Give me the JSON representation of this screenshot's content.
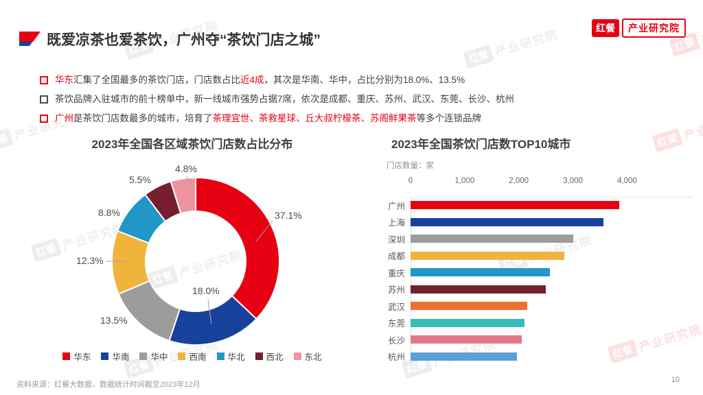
{
  "page": {
    "title": "既爱凉茶也爱茶饮，广州夺“茶饮门店之城”",
    "page_number": "10",
    "source_note": "资料来源：红餐大数据，数据统计时间截至2023年12月"
  },
  "logo": {
    "brand": "红餐",
    "org": "产业研究院"
  },
  "watermark": {
    "brand": "红餐",
    "org": "产业研究院"
  },
  "accent_colors": {
    "red": "#e60012",
    "blue": "#17429b"
  },
  "bullets": [
    {
      "marker": "red",
      "segments": [
        {
          "text": "华东",
          "hl": true
        },
        {
          "text": "汇集了全国最多的茶饮门店，门店数占比",
          "hl": false
        },
        {
          "text": "近4成",
          "hl": true
        },
        {
          "text": "，其次是华南、华中，占比分别为18.0%、13.5%",
          "hl": false
        }
      ]
    },
    {
      "marker": "dark",
      "segments": [
        {
          "text": "茶饮品牌入驻城市的前十榜单中，新一线城市强势占据7席，依次是成都、重庆、苏州、武汉、东莞、长沙、杭州",
          "hl": false
        }
      ]
    },
    {
      "marker": "red",
      "segments": [
        {
          "text": "广州",
          "hl": true
        },
        {
          "text": "是茶饮门店数最多的城市，培育了",
          "hl": false
        },
        {
          "text": "茶理宜世、茶救星球、丘大叔柠檬茶、苏阁鲜果茶",
          "hl": true
        },
        {
          "text": "等多个连锁品牌",
          "hl": false
        }
      ]
    }
  ],
  "chart_data": [
    {
      "type": "pie",
      "donut": true,
      "title": "2023年全国各区域茶饮门店数占比分布",
      "labels": [
        "华东",
        "华南",
        "华中",
        "西南",
        "华北",
        "西北",
        "东北"
      ],
      "values": [
        37.1,
        18.0,
        13.5,
        12.3,
        8.8,
        5.5,
        4.8
      ],
      "value_labels": [
        "37.1%",
        "18.0%",
        "13.5%",
        "12.3%",
        "8.8%",
        "5.5%",
        "4.8%"
      ],
      "colors": [
        "#e60012",
        "#17429b",
        "#9c9c9c",
        "#f0b43c",
        "#2097c6",
        "#771f30",
        "#ef93a0"
      ],
      "legend_position": "bottom",
      "start_angle_deg": 0,
      "direction": "clockwise"
    },
    {
      "type": "bar",
      "orientation": "horizontal",
      "title": "2023年全国茶饮门店数TOP10城市",
      "axis_label": "门店数量：家",
      "categories": [
        "广州",
        "上海",
        "深圳",
        "成都",
        "重庆",
        "苏州",
        "武汉",
        "东莞",
        "长沙",
        "杭州"
      ],
      "values": [
        3860,
        3560,
        3000,
        2840,
        2580,
        2500,
        2160,
        2110,
        2060,
        1960
      ],
      "colors": [
        "#e60012",
        "#17429b",
        "#9c9c9c",
        "#f0b43c",
        "#2097c6",
        "#771f30",
        "#ee7032",
        "#38bcba",
        "#e4788a",
        "#5ba0d6"
      ],
      "x_ticks": [
        "0",
        "1,000",
        "2,000",
        "3,000",
        "4,000"
      ],
      "x_tick_values": [
        0,
        1000,
        2000,
        3000,
        4000
      ],
      "xlim": [
        0,
        5200
      ],
      "grid": false
    }
  ]
}
